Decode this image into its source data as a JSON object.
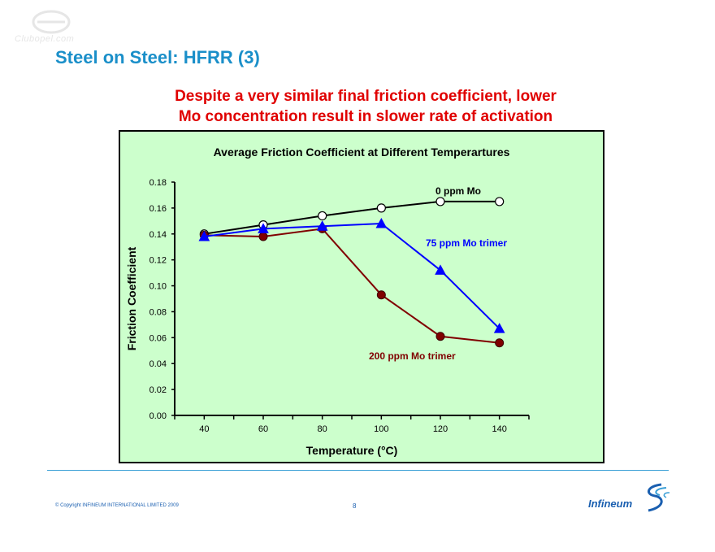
{
  "slide": {
    "title": "Steel on Steel: HFRR (3)",
    "subtitle_line1": "Despite a very similar final friction coefficient, lower",
    "subtitle_line2": "Mo concentration result in slower rate of activation",
    "copyright": "© Copyright INFINEUM INTERNATIONAL LIMITED 2009",
    "page_number": "8",
    "logo_text": "Infineum",
    "watermark_text": "Clubopel.com"
  },
  "colors": {
    "title": "#1a8fc9",
    "subtitle": "#e00000",
    "chart_background": "#ccffcc",
    "series_0ppm": "#000000",
    "series_75ppm": "#0000ff",
    "series_200ppm": "#800000"
  },
  "chart_data": {
    "type": "line",
    "title": "Average Friction Coefficient at Different Temperartures",
    "xlabel": "Temperature (°C)",
    "ylabel": "Friction Coefficient",
    "x": [
      40,
      60,
      80,
      100,
      120,
      140
    ],
    "xlim": [
      30,
      150
    ],
    "ylim": [
      0,
      0.18
    ],
    "yticks": [
      "0.00",
      "0.02",
      "0.04",
      "0.06",
      "0.08",
      "0.10",
      "0.12",
      "0.14",
      "0.16",
      "0.18"
    ],
    "xticks": [
      "40",
      "60",
      "80",
      "100",
      "120",
      "140"
    ],
    "grid": false,
    "legend": "inline labels",
    "series": [
      {
        "name": "0 ppm Mo",
        "values": [
          0.14,
          0.147,
          0.154,
          0.16,
          0.165,
          0.165
        ],
        "marker": "circle-open",
        "color": "#000000"
      },
      {
        "name": "75 ppm Mo trimer",
        "values": [
          0.138,
          0.144,
          0.146,
          0.148,
          0.112,
          0.067
        ],
        "marker": "triangle",
        "color": "#0000ff"
      },
      {
        "name": "200 ppm Mo trimer",
        "values": [
          0.139,
          0.138,
          0.144,
          0.093,
          0.061,
          0.056
        ],
        "marker": "circle-filled",
        "color": "#800000"
      }
    ]
  }
}
